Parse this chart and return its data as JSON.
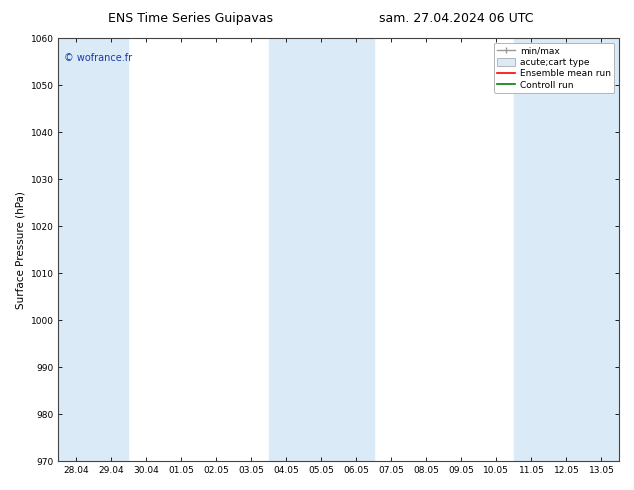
{
  "title_left": "ENS Time Series Guipavas",
  "title_right": "sam. 27.04.2024 06 UTC",
  "ylabel": "Surface Pressure (hPa)",
  "ylim": [
    970,
    1060
  ],
  "yticks": [
    970,
    980,
    990,
    1000,
    1010,
    1020,
    1030,
    1040,
    1050,
    1060
  ],
  "xtick_labels": [
    "28.04",
    "29.04",
    "30.04",
    "01.05",
    "02.05",
    "03.05",
    "04.05",
    "05.05",
    "06.05",
    "07.05",
    "08.05",
    "09.05",
    "10.05",
    "11.05",
    "12.05",
    "13.05"
  ],
  "shaded_band_centers": [
    0,
    1,
    6,
    7,
    8,
    13,
    14,
    15
  ],
  "band_color": "#daeaf7",
  "background_color": "#ffffff",
  "plot_bg_color": "#ffffff",
  "watermark": "© wofrance.fr",
  "watermark_color": "#1a3aaa",
  "legend_entries": [
    {
      "label": "min/max"
    },
    {
      "label": "acute;cart type"
    },
    {
      "label": "Ensemble mean run"
    },
    {
      "label": "Controll run"
    }
  ],
  "title_fontsize": 9,
  "tick_fontsize": 6.5,
  "ylabel_fontsize": 7.5,
  "legend_fontsize": 6.5
}
